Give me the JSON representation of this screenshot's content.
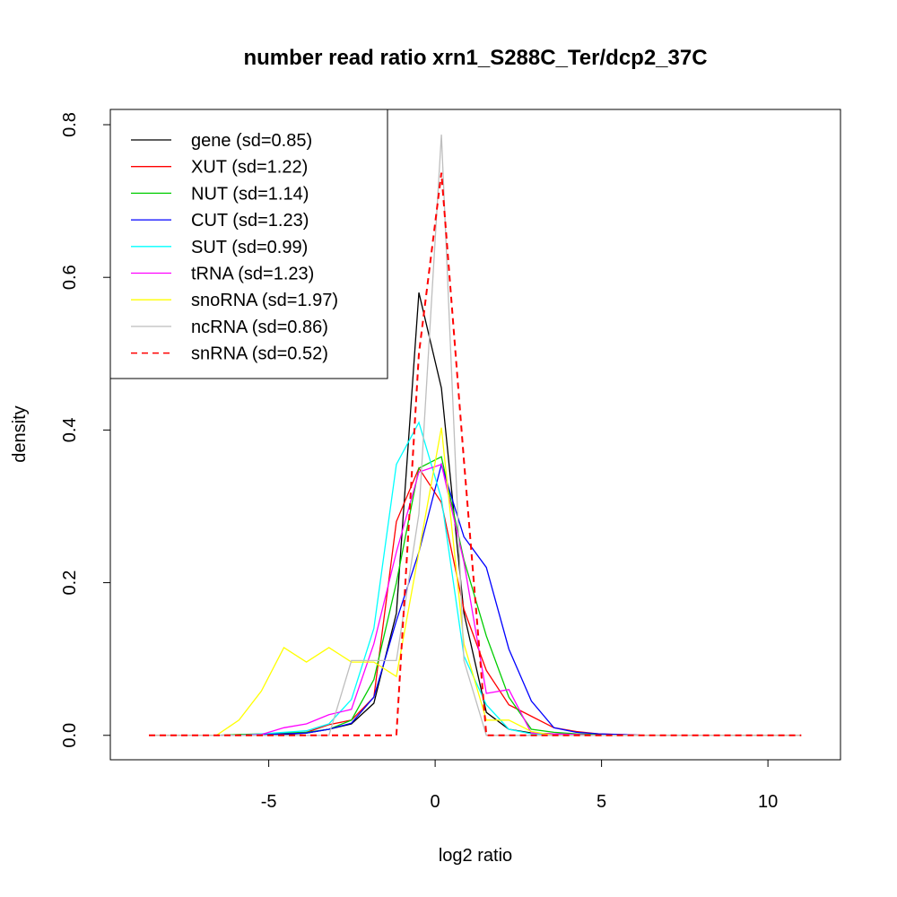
{
  "chart_data": {
    "type": "line",
    "title": "number read ratio xrn1_S288C_Ter/dcp2_37C",
    "xlabel": "log2 ratio",
    "ylabel": "density",
    "xlim": [
      -9.76,
      12.18
    ],
    "ylim": [
      -0.032,
      0.82
    ],
    "xticks": [
      -5,
      0,
      5,
      10
    ],
    "xtick_labels": [
      "-5",
      "0",
      "5",
      "10"
    ],
    "yticks": [
      0.0,
      0.2,
      0.4,
      0.6,
      0.8
    ],
    "ytick_labels": [
      "0.0",
      "0.2",
      "0.4",
      "0.6",
      "0.8"
    ],
    "grid": false,
    "legend_position": "top-left",
    "x": [
      -8.6,
      -7.924,
      -7.248,
      -6.572,
      -5.896,
      -5.22,
      -4.544,
      -3.868,
      -3.192,
      -2.516,
      -1.84,
      -1.164,
      -0.488,
      0.188,
      0.864,
      1.54,
      2.216,
      2.892,
      3.568,
      4.244,
      4.92,
      5.596,
      6.272,
      6.948,
      7.624,
      8.3,
      8.976,
      9.652,
      10.328,
      11.0
    ],
    "series": [
      {
        "name": "gene (sd=0.85)",
        "color": "#000000",
        "dash": false,
        "values": [
          0,
          0,
          0,
          0,
          0,
          0,
          0.001,
          0.003,
          0.008,
          0.015,
          0.042,
          0.16,
          0.58,
          0.455,
          0.16,
          0.03,
          0.008,
          0.003,
          0.002,
          0.001,
          0,
          0,
          0,
          0,
          0,
          0,
          0,
          0,
          0,
          0
        ]
      },
      {
        "name": "XUT (sd=1.22)",
        "color": "#FF0000",
        "dash": false,
        "values": [
          0,
          0,
          0,
          0,
          0,
          0.001,
          0.002,
          0.004,
          0.014,
          0.02,
          0.05,
          0.28,
          0.35,
          0.305,
          0.165,
          0.085,
          0.04,
          0.025,
          0.01,
          0.005,
          0.002,
          0.001,
          0,
          0,
          0,
          0,
          0,
          0,
          0,
          0
        ]
      },
      {
        "name": "NUT (sd=1.14)",
        "color": "#00CD00",
        "dash": false,
        "values": [
          0,
          0,
          0,
          0,
          0.001,
          0.002,
          0.003,
          0.004,
          0.008,
          0.02,
          0.073,
          0.2,
          0.35,
          0.365,
          0.23,
          0.13,
          0.05,
          0.008,
          0.004,
          0.002,
          0.001,
          0,
          0,
          0,
          0,
          0,
          0,
          0,
          0,
          0
        ]
      },
      {
        "name": "CUT (sd=1.23)",
        "color": "#0000FF",
        "dash": false,
        "values": [
          0,
          0,
          0,
          0,
          0,
          0.001,
          0.002,
          0.003,
          0.008,
          0.016,
          0.05,
          0.15,
          0.24,
          0.355,
          0.26,
          0.22,
          0.113,
          0.045,
          0.01,
          0.004,
          0.002,
          0.001,
          0,
          0,
          0,
          0,
          0,
          0,
          0,
          0
        ]
      },
      {
        "name": "SUT (sd=0.99)",
        "color": "#00FFFF",
        "dash": false,
        "values": [
          0,
          0,
          0,
          0,
          0,
          0.002,
          0.004,
          0.006,
          0.015,
          0.047,
          0.14,
          0.355,
          0.41,
          0.31,
          0.104,
          0.04,
          0.008,
          0.002,
          0.001,
          0,
          0,
          0,
          0,
          0,
          0,
          0,
          0,
          0,
          0,
          0
        ]
      },
      {
        "name": "tRNA (sd=1.23)",
        "color": "#FF00FF",
        "dash": false,
        "values": [
          0,
          0,
          0,
          0,
          0,
          0.001,
          0.01,
          0.015,
          0.027,
          0.034,
          0.12,
          0.24,
          0.345,
          0.355,
          0.227,
          0.055,
          0.06,
          0.003,
          0.002,
          0.001,
          0,
          0,
          0,
          0,
          0,
          0,
          0,
          0,
          0,
          0
        ]
      },
      {
        "name": "snoRNA (sd=1.97)",
        "color": "#FFFF00",
        "dash": false,
        "values": [
          0,
          0,
          0,
          0,
          0.02,
          0.058,
          0.115,
          0.096,
          0.115,
          0.096,
          0.096,
          0.077,
          0.24,
          0.403,
          0.12,
          0.02,
          0.02,
          0.005,
          0,
          0,
          0,
          0,
          0,
          0,
          0,
          0,
          0,
          0,
          0,
          0
        ]
      },
      {
        "name": "ncRNA (sd=0.86)",
        "color": "#BEBEBE",
        "dash": false,
        "values": [
          0,
          0,
          0,
          0,
          0,
          0,
          0,
          0,
          0,
          0.098,
          0.098,
          0.098,
          0.29,
          0.787,
          0.098,
          0,
          0,
          0,
          0,
          0,
          0,
          0,
          0,
          0,
          0,
          0,
          0,
          0,
          0,
          0
        ]
      },
      {
        "name": "snRNA (sd=0.52)",
        "color": "#FF0000",
        "dash": true,
        "values": [
          0,
          0,
          0,
          0,
          0,
          0,
          0,
          0,
          0,
          0,
          0,
          0,
          0.5,
          0.737,
          0.36,
          0,
          0,
          0,
          0,
          0,
          0,
          0,
          0,
          0,
          0,
          0,
          0,
          0,
          0,
          0
        ]
      }
    ]
  }
}
